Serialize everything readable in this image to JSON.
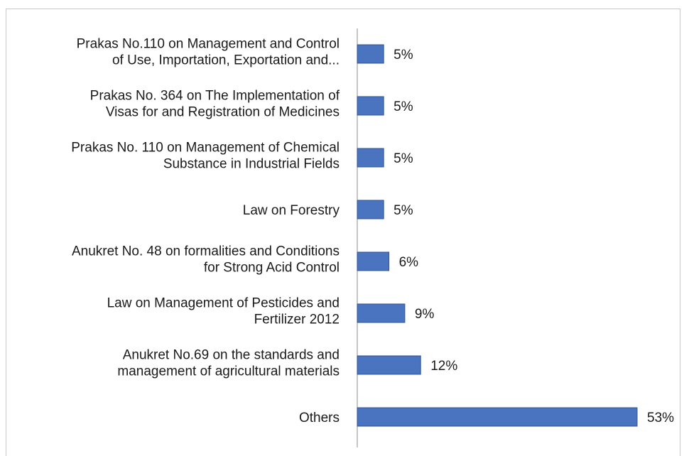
{
  "chart_data": {
    "type": "bar",
    "orientation": "horizontal",
    "categories": [
      [
        "Prakas No.110 on Management and Control",
        "of Use, Importation, Exportation and..."
      ],
      [
        "Prakas No. 364 on The Implementation of",
        "Visas for and Registration of Medicines"
      ],
      [
        "Prakas No. 110 on Management of Chemical",
        "Substance in Industrial Fields"
      ],
      [
        "Law on Forestry"
      ],
      [
        "Anukret No. 48 on formalities and Conditions",
        "for Strong Acid Control"
      ],
      [
        "Law on Management of Pesticides and",
        "Fertilizer 2012"
      ],
      [
        "Anukret No.69 on the standards and",
        "management of agricultural materials"
      ],
      [
        "Others"
      ]
    ],
    "values": [
      5,
      5,
      5,
      5,
      6,
      9,
      12,
      53
    ],
    "value_labels": [
      "5%",
      "5%",
      "5%",
      "5%",
      "6%",
      "9%",
      "12%",
      "53%"
    ],
    "title": "",
    "xlabel": "",
    "ylabel": "",
    "xlim": [
      0,
      56
    ],
    "grid": false,
    "bar_color": "#4a74bf",
    "bar_edge_color": "#2f5597"
  }
}
